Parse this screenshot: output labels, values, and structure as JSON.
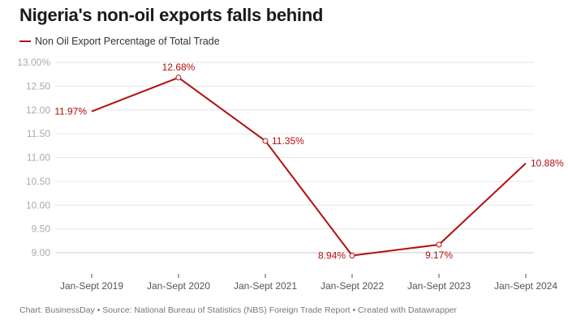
{
  "chart_data": {
    "type": "line",
    "title": "Nigeria's non-oil exports falls behind",
    "categories": [
      "Jan-Sept 2019",
      "Jan-Sept 2020",
      "Jan-Sept 2021",
      "Jan-Sept 2022",
      "Jan-Sept 2023",
      "Jan-Sept 2024"
    ],
    "series": [
      {
        "name": "Non Oil Export Percentage of Total Trade",
        "values": [
          11.97,
          12.68,
          11.35,
          8.94,
          9.17,
          10.88
        ],
        "color": "#b30f0f"
      }
    ],
    "data_labels": [
      "11.97%",
      "12.68%",
      "11.35%",
      "8.94%",
      "9.17%",
      "10.88%"
    ],
    "y_ticks": [
      9.0,
      9.5,
      10.0,
      10.5,
      11.0,
      11.5,
      12.0,
      12.5,
      13.0
    ],
    "y_tick_labels": [
      "9.00",
      "9.50",
      "10.00",
      "10.50",
      "11.00",
      "11.50",
      "12.00",
      "12.50",
      "13.00%"
    ],
    "ylim": [
      9.0,
      13.0
    ],
    "grid": true,
    "legend_position": "top-left",
    "xlabel": "",
    "ylabel": ""
  },
  "footer": "Chart: BusinessDay • Source: National Bureau of Statistics (NBS) Foreign Trade Report  • Created with Datawrapper"
}
